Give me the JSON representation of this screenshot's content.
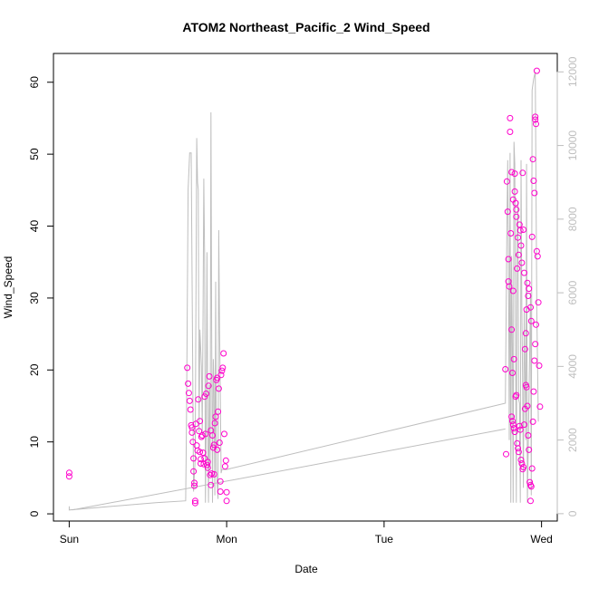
{
  "chart_data": {
    "type": "scatter",
    "title": "ATOM2 Northeast_Pacific_2 Wind_Speed",
    "xlabel": "Date",
    "ylabel": "Wind_Speed",
    "x_tick_labels": [
      "Sun",
      "Mon",
      "Tue",
      "Wed"
    ],
    "xlim_days": [
      -0.1,
      3.1
    ],
    "ylim": [
      -1,
      64
    ],
    "yticks": [
      0,
      10,
      20,
      30,
      40,
      50,
      60
    ],
    "y2lim": [
      -200,
      12500
    ],
    "y2ticks": [
      0,
      2000,
      4000,
      6000,
      8000,
      10000,
      12000
    ],
    "grid": false,
    "series": [
      {
        "kind": "points",
        "color": "#ff00cc",
        "points": [
          [
            0.0,
            5.7
          ],
          [
            0.0,
            5.2
          ],
          [
            0.75,
            20.3
          ],
          [
            0.755,
            18.1
          ],
          [
            0.76,
            16.8
          ],
          [
            0.765,
            15.7
          ],
          [
            0.77,
            14.5
          ],
          [
            0.775,
            12.3
          ],
          [
            0.78,
            12.0
          ],
          [
            0.78,
            11.3
          ],
          [
            0.785,
            10.0
          ],
          [
            0.79,
            7.7
          ],
          [
            0.79,
            5.9
          ],
          [
            0.795,
            4.3
          ],
          [
            0.795,
            3.9
          ],
          [
            0.8,
            1.8
          ],
          [
            0.8,
            1.5
          ],
          [
            0.805,
            12.5
          ],
          [
            0.81,
            9.5
          ],
          [
            0.815,
            8.8
          ],
          [
            0.82,
            15.9
          ],
          [
            0.825,
            11.5
          ],
          [
            0.83,
            8.6
          ],
          [
            0.835,
            7.6
          ],
          [
            0.84,
            10.7
          ],
          [
            0.845,
            10.9
          ],
          [
            0.85,
            8.5
          ],
          [
            0.855,
            6.9
          ],
          [
            0.86,
            16.3
          ],
          [
            0.865,
            11.1
          ],
          [
            0.87,
            16.7
          ],
          [
            0.875,
            6.8
          ],
          [
            0.88,
            7.2
          ],
          [
            0.885,
            17.8
          ],
          [
            0.89,
            19.1
          ],
          [
            0.895,
            5.4
          ],
          [
            0.9,
            11.6
          ],
          [
            0.905,
            5.6
          ],
          [
            0.91,
            10.9
          ],
          [
            0.915,
            9.2
          ],
          [
            0.92,
            9.6
          ],
          [
            0.925,
            12.6
          ],
          [
            0.93,
            13.5
          ],
          [
            0.935,
            18.6
          ],
          [
            0.94,
            18.9
          ],
          [
            0.945,
            14.2
          ],
          [
            0.95,
            17.4
          ],
          [
            0.955,
            9.9
          ],
          [
            0.96,
            3.1
          ],
          [
            0.965,
            19.3
          ],
          [
            0.97,
            19.9
          ],
          [
            0.975,
            20.3
          ],
          [
            0.98,
            22.3
          ],
          [
            0.985,
            11.1
          ],
          [
            0.99,
            6.6
          ],
          [
            0.995,
            7.4
          ],
          [
            1.0,
            3.0
          ],
          [
            1.0,
            1.8
          ],
          [
            0.835,
            7.0
          ],
          [
            0.86,
            7.7
          ],
          [
            0.88,
            6.4
          ],
          [
            0.9,
            4.0
          ],
          [
            0.92,
            5.5
          ],
          [
            0.94,
            8.9
          ],
          [
            0.96,
            4.5
          ],
          [
            0.83,
            12.9
          ],
          [
            2.77,
            20.1
          ],
          [
            2.775,
            8.3
          ],
          [
            2.78,
            46.2
          ],
          [
            2.785,
            42.0
          ],
          [
            2.79,
            35.4
          ],
          [
            2.79,
            32.3
          ],
          [
            2.795,
            31.6
          ],
          [
            2.8,
            55.0
          ],
          [
            2.8,
            53.1
          ],
          [
            2.805,
            39.0
          ],
          [
            2.81,
            47.5
          ],
          [
            2.81,
            25.6
          ],
          [
            2.815,
            19.6
          ],
          [
            2.82,
            43.7
          ],
          [
            2.82,
            31.0
          ],
          [
            2.825,
            21.5
          ],
          [
            2.83,
            47.3
          ],
          [
            2.83,
            44.8
          ],
          [
            2.835,
            43.2
          ],
          [
            2.84,
            42.3
          ],
          [
            2.84,
            41.3
          ],
          [
            2.845,
            34.1
          ],
          [
            2.85,
            38.4
          ],
          [
            2.855,
            36.0
          ],
          [
            2.86,
            40.2
          ],
          [
            2.865,
            39.4
          ],
          [
            2.87,
            37.3
          ],
          [
            2.875,
            34.9
          ],
          [
            2.88,
            47.4
          ],
          [
            2.885,
            39.5
          ],
          [
            2.89,
            33.5
          ],
          [
            2.895,
            22.9
          ],
          [
            2.9,
            25.1
          ],
          [
            2.905,
            28.4
          ],
          [
            2.91,
            32.1
          ],
          [
            2.915,
            30.3
          ],
          [
            2.92,
            31.3
          ],
          [
            2.93,
            28.7
          ],
          [
            2.935,
            26.8
          ],
          [
            2.94,
            38.5
          ],
          [
            2.945,
            49.3
          ],
          [
            2.95,
            46.3
          ],
          [
            2.955,
            44.6
          ],
          [
            2.96,
            55.2
          ],
          [
            2.96,
            54.8
          ],
          [
            2.965,
            54.2
          ],
          [
            2.97,
            61.6
          ],
          [
            2.975,
            35.8
          ],
          [
            2.98,
            29.4
          ],
          [
            2.985,
            20.6
          ],
          [
            2.99,
            14.9
          ],
          [
            2.81,
            13.5
          ],
          [
            2.815,
            12.9
          ],
          [
            2.82,
            12.4
          ],
          [
            2.825,
            11.9
          ],
          [
            2.83,
            11.4
          ],
          [
            2.835,
            16.3
          ],
          [
            2.84,
            16.5
          ],
          [
            2.845,
            9.8
          ],
          [
            2.85,
            9.1
          ],
          [
            2.855,
            8.6
          ],
          [
            2.86,
            12.2
          ],
          [
            2.865,
            11.7
          ],
          [
            2.87,
            7.5
          ],
          [
            2.875,
            7.0
          ],
          [
            2.88,
            6.2
          ],
          [
            2.885,
            6.5
          ],
          [
            2.89,
            12.4
          ],
          [
            2.895,
            14.6
          ],
          [
            2.9,
            17.9
          ],
          [
            2.905,
            17.6
          ],
          [
            2.91,
            15.0
          ],
          [
            2.915,
            10.9
          ],
          [
            2.92,
            8.9
          ],
          [
            2.925,
            4.4
          ],
          [
            2.93,
            4.0
          ],
          [
            2.93,
            1.8
          ],
          [
            2.935,
            3.8
          ],
          [
            2.94,
            6.3
          ],
          [
            2.945,
            12.8
          ],
          [
            2.95,
            17.0
          ],
          [
            2.955,
            21.3
          ],
          [
            2.96,
            23.6
          ],
          [
            2.965,
            26.3
          ],
          [
            2.97,
            36.5
          ]
        ]
      },
      {
        "kind": "line",
        "color": "#bebebe",
        "axis": "right",
        "points": [
          [
            0.0,
            200
          ],
          [
            0.0,
            100
          ],
          [
            0.55,
            300
          ],
          [
            0.74,
            350
          ],
          [
            0.745,
            2500
          ],
          [
            0.755,
            8800
          ],
          [
            0.765,
            9800
          ],
          [
            0.775,
            9800
          ],
          [
            0.785,
            3500
          ],
          [
            0.79,
            600
          ],
          [
            0.8,
            1500
          ],
          [
            0.81,
            10200
          ],
          [
            0.815,
            9000
          ],
          [
            0.82,
            8800
          ],
          [
            0.825,
            2200
          ],
          [
            0.83,
            5000
          ],
          [
            0.84,
            4000
          ],
          [
            0.845,
            2200
          ],
          [
            0.85,
            5500
          ],
          [
            0.855,
            9100
          ],
          [
            0.86,
            7000
          ],
          [
            0.865,
            300
          ],
          [
            0.87,
            2200
          ],
          [
            0.875,
            7100
          ],
          [
            0.88,
            2200
          ],
          [
            0.885,
            300
          ],
          [
            0.89,
            3500
          ],
          [
            0.895,
            1200
          ],
          [
            0.9,
            10900
          ],
          [
            0.905,
            5000
          ],
          [
            0.91,
            300
          ],
          [
            0.915,
            4200
          ],
          [
            0.92,
            3400
          ],
          [
            0.925,
            500
          ],
          [
            0.93,
            6300
          ],
          [
            0.935,
            1200
          ],
          [
            0.94,
            800
          ],
          [
            0.945,
            400
          ],
          [
            0.95,
            7700
          ],
          [
            0.955,
            5000
          ],
          [
            0.96,
            3100
          ],
          [
            0.965,
            1100
          ],
          [
            0.97,
            1200
          ],
          [
            1.0,
            1200
          ],
          [
            2.77,
            3000
          ],
          [
            2.78,
            7800
          ],
          [
            2.785,
            9600
          ],
          [
            2.79,
            7000
          ],
          [
            2.795,
            2000
          ],
          [
            2.8,
            9800
          ],
          [
            2.805,
            300
          ],
          [
            2.81,
            7000
          ],
          [
            2.815,
            4400
          ],
          [
            2.82,
            300
          ],
          [
            2.825,
            10100
          ],
          [
            2.83,
            9500
          ],
          [
            2.84,
            300
          ],
          [
            2.845,
            7900
          ],
          [
            2.85,
            8500
          ],
          [
            2.855,
            3100
          ],
          [
            2.86,
            3000
          ],
          [
            2.865,
            300
          ],
          [
            2.87,
            9600
          ],
          [
            2.875,
            5500
          ],
          [
            2.88,
            3500
          ],
          [
            2.885,
            700
          ],
          [
            2.89,
            5500
          ],
          [
            2.9,
            2000
          ],
          [
            2.905,
            9500
          ],
          [
            2.91,
            300
          ],
          [
            2.92,
            3000
          ],
          [
            2.93,
            6000
          ],
          [
            2.935,
            500
          ],
          [
            2.94,
            11500
          ],
          [
            2.95,
            11800
          ],
          [
            2.96,
            12000
          ],
          [
            2.97,
            5500
          ],
          [
            2.98,
            2500
          ]
        ]
      },
      {
        "kind": "line",
        "color": "#bebebe",
        "axis": "right",
        "points": [
          [
            0.02,
            100
          ],
          [
            2.77,
            2300
          ]
        ]
      }
    ]
  }
}
